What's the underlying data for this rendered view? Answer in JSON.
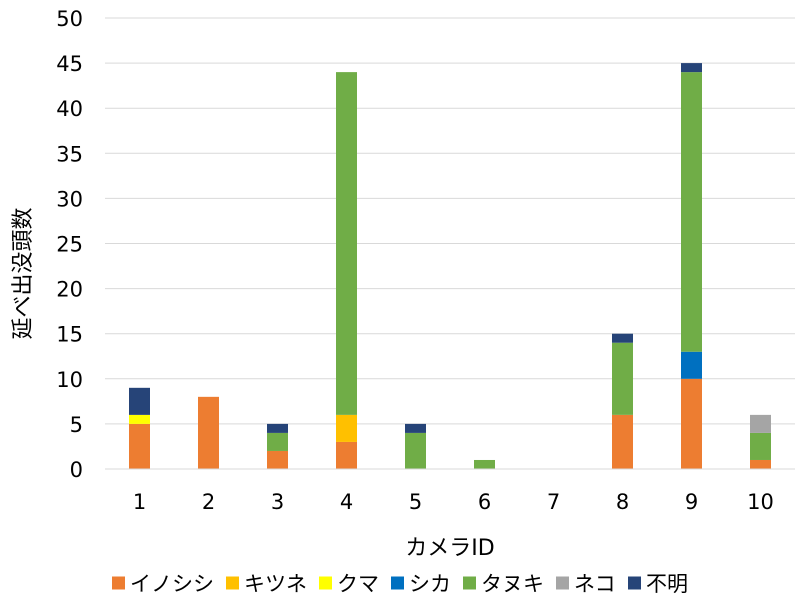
{
  "chart_data": {
    "type": "bar",
    "stacked": true,
    "categories": [
      "1",
      "2",
      "3",
      "4",
      "5",
      "6",
      "7",
      "8",
      "9",
      "10"
    ],
    "series": [
      {
        "name": "イノシシ",
        "color": "#ED7D31",
        "values": [
          5,
          8,
          2,
          3,
          0,
          0,
          0,
          6,
          10,
          1
        ]
      },
      {
        "name": "キツネ",
        "color": "#FFC000",
        "values": [
          0,
          0,
          0,
          3,
          0,
          0,
          0,
          0,
          0,
          0
        ]
      },
      {
        "name": "クマ",
        "color": "#FFFF00",
        "values": [
          1,
          0,
          0,
          0,
          0,
          0,
          0,
          0,
          0,
          0
        ]
      },
      {
        "name": "シカ",
        "color": "#0070C0",
        "values": [
          0,
          0,
          0,
          0,
          0,
          0,
          0,
          0,
          3,
          0
        ]
      },
      {
        "name": "タヌキ",
        "color": "#70AD47",
        "values": [
          0,
          0,
          2,
          38,
          4,
          1,
          0,
          8,
          31,
          3
        ]
      },
      {
        "name": "ネコ",
        "color": "#A5A5A5",
        "values": [
          0,
          0,
          0,
          0,
          0,
          0,
          0,
          0,
          0,
          2
        ]
      },
      {
        "name": "不明",
        "color": "#264478",
        "values": [
          3,
          0,
          1,
          0,
          1,
          0,
          0,
          1,
          1,
          0
        ]
      }
    ],
    "xlabel": "カメラID",
    "ylabel": "延べ出没頭数",
    "ylim": [
      0,
      50
    ],
    "yticks": [
      0,
      5,
      10,
      15,
      20,
      25,
      30,
      35,
      40,
      45,
      50
    ],
    "grid": true,
    "legend_position": "bottom"
  }
}
